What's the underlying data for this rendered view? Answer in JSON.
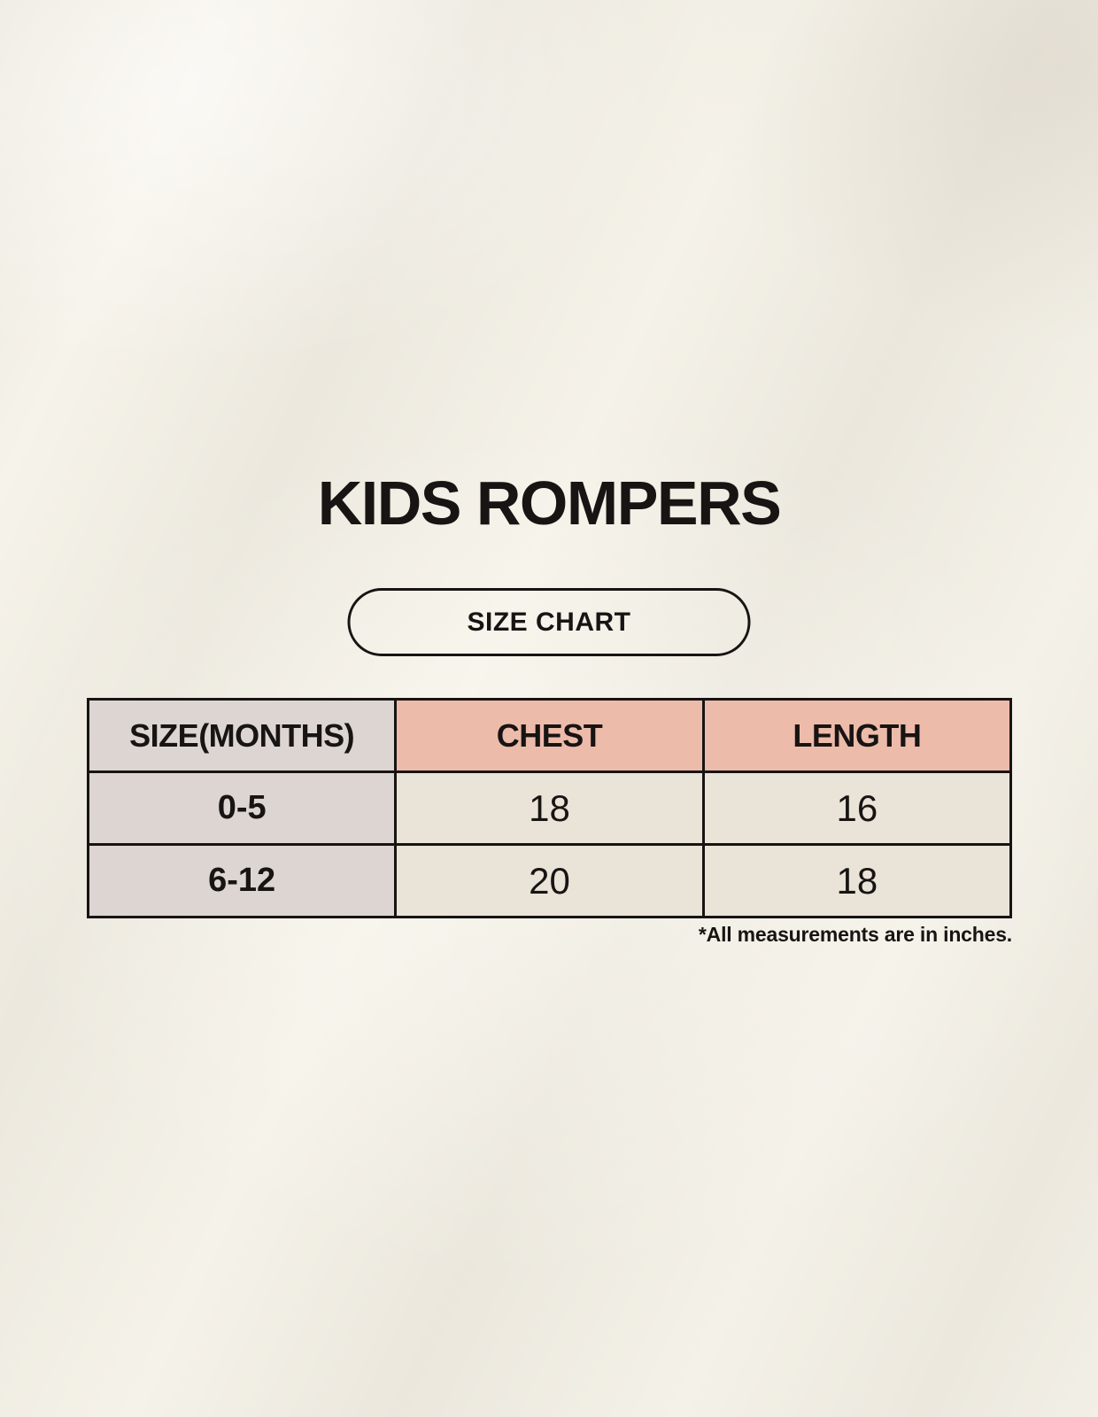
{
  "title": "KIDS ROMPERS",
  "size_chart_button": {
    "label": "SIZE CHART"
  },
  "chart_data": {
    "type": "table",
    "title": "KIDS ROMPERS",
    "columns": [
      "SIZE(MONTHS)",
      "CHEST",
      "LENGTH"
    ],
    "rows": [
      {
        "size": "0-5",
        "chest": "18",
        "length": "16"
      },
      {
        "size": "6-12",
        "chest": "20",
        "length": "18"
      }
    ],
    "units_note": "*All measurements are in inches.",
    "layout": {
      "header_row_bg_size_column": "#dcd5d1",
      "header_row_bg_measure_columns": "#edbbaa",
      "data_cell_bg": "#e9e3d8",
      "border_color": "#171413",
      "page_background": "#f0ece3"
    }
  }
}
